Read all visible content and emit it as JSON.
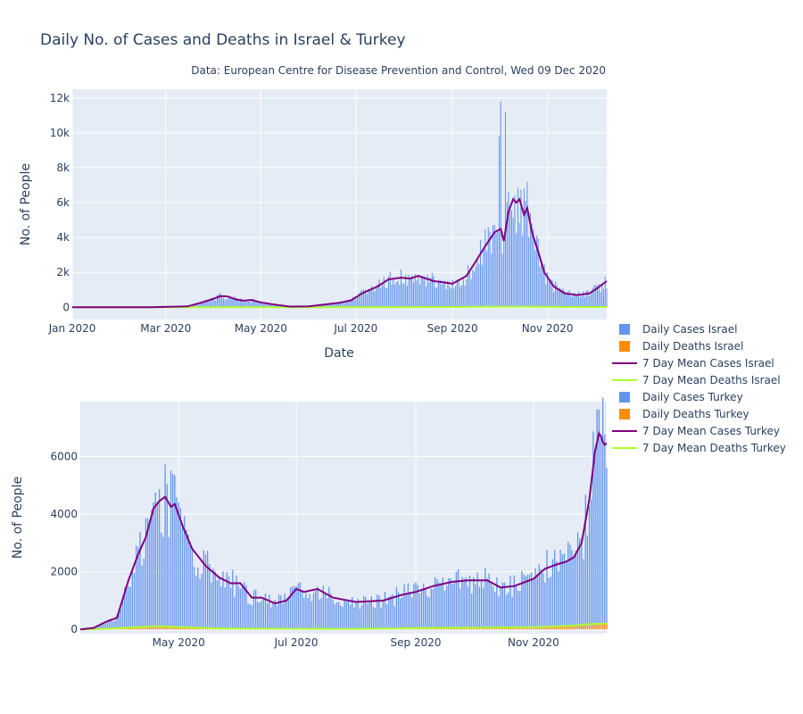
{
  "title": "Daily No. of Cases and Deaths in Israel & Turkey",
  "subtitle": "Data: European Centre for Disease Prevention and Control, Wed 09 Dec 2020",
  "colors": {
    "daily_cases": "#6495ed",
    "daily_deaths": "#ff8c00",
    "mean_cases": "#800080",
    "mean_deaths": "#adff2f",
    "plot_bg": "#e5ecf6",
    "grid": "#ffffff"
  },
  "legend": [
    {
      "label": "Daily Cases Israel",
      "kind": "bar",
      "color": "#6495ed"
    },
    {
      "label": "Daily Deaths Israel",
      "kind": "bar",
      "color": "#ff8c00"
    },
    {
      "label": "7 Day Mean Cases Israel",
      "kind": "line",
      "color": "#800080"
    },
    {
      "label": "7 Day Mean Deaths Israel",
      "kind": "line",
      "color": "#adff2f"
    },
    {
      "label": "Daily Cases Turkey",
      "kind": "bar",
      "color": "#6495ed"
    },
    {
      "label": "Daily Deaths Turkey",
      "kind": "bar",
      "color": "#ff8c00"
    },
    {
      "label": "7 Day Mean Cases Turkey",
      "kind": "line",
      "color": "#800080"
    },
    {
      "label": "7 Day Mean Deaths Turkey",
      "kind": "line",
      "color": "#adff2f"
    }
  ],
  "chart_data": [
    {
      "type": "bar",
      "panel": "Israel",
      "xlabel": "Date",
      "ylabel": "No. of People",
      "xlim": [
        "2020-01-01",
        "2020-12-09"
      ],
      "ylim": [
        -700,
        12500
      ],
      "x_ticks": [
        {
          "date": "2020-01-01",
          "label": "Jan 2020"
        },
        {
          "date": "2020-03-01",
          "label": "Mar 2020"
        },
        {
          "date": "2020-05-01",
          "label": "May 2020"
        },
        {
          "date": "2020-07-01",
          "label": "Jul 2020"
        },
        {
          "date": "2020-09-01",
          "label": "Sep 2020"
        },
        {
          "date": "2020-11-01",
          "label": "Nov 2020"
        }
      ],
      "y_ticks": [
        {
          "value": 0,
          "label": "0"
        },
        {
          "value": 2000,
          "label": "2k"
        },
        {
          "value": 4000,
          "label": "4k"
        },
        {
          "value": 6000,
          "label": "6k"
        },
        {
          "value": 8000,
          "label": "8k"
        },
        {
          "value": 10000,
          "label": "10k"
        },
        {
          "value": 12000,
          "label": "12k"
        }
      ],
      "series": [
        {
          "name": "7 Day Mean Cases Israel",
          "kind": "line",
          "points": [
            [
              "2020-01-01",
              0
            ],
            [
              "2020-02-20",
              0
            ],
            [
              "2020-03-15",
              50
            ],
            [
              "2020-03-25",
              300
            ],
            [
              "2020-04-01",
              500
            ],
            [
              "2020-04-05",
              640
            ],
            [
              "2020-04-10",
              620
            ],
            [
              "2020-04-15",
              450
            ],
            [
              "2020-04-20",
              380
            ],
            [
              "2020-04-25",
              420
            ],
            [
              "2020-05-01",
              280
            ],
            [
              "2020-05-10",
              150
            ],
            [
              "2020-05-20",
              40
            ],
            [
              "2020-06-01",
              50
            ],
            [
              "2020-06-10",
              150
            ],
            [
              "2020-06-20",
              250
            ],
            [
              "2020-06-28",
              400
            ],
            [
              "2020-07-05",
              800
            ],
            [
              "2020-07-15",
              1200
            ],
            [
              "2020-07-22",
              1600
            ],
            [
              "2020-07-30",
              1700
            ],
            [
              "2020-08-05",
              1650
            ],
            [
              "2020-08-10",
              1800
            ],
            [
              "2020-08-20",
              1500
            ],
            [
              "2020-08-25",
              1450
            ],
            [
              "2020-09-01",
              1350
            ],
            [
              "2020-09-10",
              1800
            ],
            [
              "2020-09-15",
              2500
            ],
            [
              "2020-09-22",
              3500
            ],
            [
              "2020-09-28",
              4300
            ],
            [
              "2020-10-02",
              4500
            ],
            [
              "2020-10-04",
              3800
            ],
            [
              "2020-10-07",
              5500
            ],
            [
              "2020-10-10",
              6200
            ],
            [
              "2020-10-12",
              6000
            ],
            [
              "2020-10-14",
              6200
            ],
            [
              "2020-10-17",
              5300
            ],
            [
              "2020-10-19",
              5700
            ],
            [
              "2020-10-22",
              4300
            ],
            [
              "2020-10-26",
              3200
            ],
            [
              "2020-10-30",
              2000
            ],
            [
              "2020-11-05",
              1200
            ],
            [
              "2020-11-12",
              800
            ],
            [
              "2020-11-20",
              700
            ],
            [
              "2020-11-28",
              800
            ],
            [
              "2020-12-03",
              1100
            ],
            [
              "2020-12-09",
              1500
            ]
          ]
        },
        {
          "name": "7 Day Mean Deaths Israel",
          "kind": "line",
          "points": [
            [
              "2020-01-01",
              0
            ],
            [
              "2020-03-20",
              2
            ],
            [
              "2020-04-10",
              8
            ],
            [
              "2020-05-15",
              2
            ],
            [
              "2020-07-01",
              3
            ],
            [
              "2020-08-01",
              12
            ],
            [
              "2020-09-01",
              18
            ],
            [
              "2020-10-01",
              35
            ],
            [
              "2020-10-20",
              38
            ],
            [
              "2020-11-15",
              15
            ],
            [
              "2020-12-09",
              14
            ]
          ]
        }
      ]
    },
    {
      "type": "bar",
      "panel": "Turkey",
      "ylabel": "No. of People",
      "xlim": [
        "2020-03-11",
        "2020-12-09"
      ],
      "ylim": [
        -150,
        7900
      ],
      "x_ticks": [
        {
          "date": "2020-05-01",
          "label": "May 2020"
        },
        {
          "date": "2020-07-01",
          "label": "Jul 2020"
        },
        {
          "date": "2020-09-01",
          "label": "Sep 2020"
        },
        {
          "date": "2020-11-01",
          "label": "Nov 2020"
        }
      ],
      "y_ticks": [
        {
          "value": 0,
          "label": "0"
        },
        {
          "value": 2000,
          "label": "2000"
        },
        {
          "value": 4000,
          "label": "4000"
        },
        {
          "value": 6000,
          "label": "6000"
        }
      ],
      "series": [
        {
          "name": "7 Day Mean Cases Turkey",
          "kind": "line",
          "points": [
            [
              "2020-03-11",
              0
            ],
            [
              "2020-03-18",
              50
            ],
            [
              "2020-03-24",
              250
            ],
            [
              "2020-03-30",
              400
            ],
            [
              "2020-04-05",
              1700
            ],
            [
              "2020-04-10",
              2600
            ],
            [
              "2020-04-14",
              3200
            ],
            [
              "2020-04-18",
              4200
            ],
            [
              "2020-04-21",
              4450
            ],
            [
              "2020-04-24",
              4600
            ],
            [
              "2020-04-27",
              4250
            ],
            [
              "2020-04-29",
              4350
            ],
            [
              "2020-05-03",
              3600
            ],
            [
              "2020-05-08",
              2800
            ],
            [
              "2020-05-15",
              2200
            ],
            [
              "2020-05-22",
              1800
            ],
            [
              "2020-05-28",
              1600
            ],
            [
              "2020-06-02",
              1600
            ],
            [
              "2020-06-08",
              1100
            ],
            [
              "2020-06-13",
              1100
            ],
            [
              "2020-06-20",
              900
            ],
            [
              "2020-06-26",
              1000
            ],
            [
              "2020-07-01",
              1400
            ],
            [
              "2020-07-05",
              1300
            ],
            [
              "2020-07-12",
              1400
            ],
            [
              "2020-07-20",
              1100
            ],
            [
              "2020-08-01",
              950
            ],
            [
              "2020-08-15",
              1000
            ],
            [
              "2020-08-25",
              1200
            ],
            [
              "2020-09-01",
              1300
            ],
            [
              "2020-09-10",
              1500
            ],
            [
              "2020-09-20",
              1650
            ],
            [
              "2020-09-28",
              1700
            ],
            [
              "2020-10-08",
              1700
            ],
            [
              "2020-10-15",
              1450
            ],
            [
              "2020-10-22",
              1500
            ],
            [
              "2020-11-01",
              1750
            ],
            [
              "2020-11-07",
              2100
            ],
            [
              "2020-11-13",
              2250
            ],
            [
              "2020-11-18",
              2350
            ],
            [
              "2020-11-22",
              2500
            ],
            [
              "2020-11-26",
              3000
            ],
            [
              "2020-11-30",
              4500
            ],
            [
              "2020-12-03",
              6200
            ],
            [
              "2020-12-05",
              6800
            ],
            [
              "2020-12-06",
              6700
            ],
            [
              "2020-12-07",
              6500
            ],
            [
              "2020-12-08",
              6400
            ],
            [
              "2020-12-09",
              6450
            ]
          ]
        },
        {
          "name": "7 Day Mean Deaths Turkey",
          "kind": "line",
          "points": [
            [
              "2020-03-11",
              0
            ],
            [
              "2020-03-25",
              20
            ],
            [
              "2020-04-05",
              60
            ],
            [
              "2020-04-20",
              110
            ],
            [
              "2020-05-05",
              70
            ],
            [
              "2020-05-25",
              30
            ],
            [
              "2020-07-01",
              20
            ],
            [
              "2020-08-01",
              18
            ],
            [
              "2020-09-01",
              45
            ],
            [
              "2020-10-01",
              60
            ],
            [
              "2020-11-01",
              75
            ],
            [
              "2020-11-20",
              120
            ],
            [
              "2020-12-01",
              180
            ],
            [
              "2020-12-09",
              205
            ]
          ]
        }
      ]
    }
  ]
}
